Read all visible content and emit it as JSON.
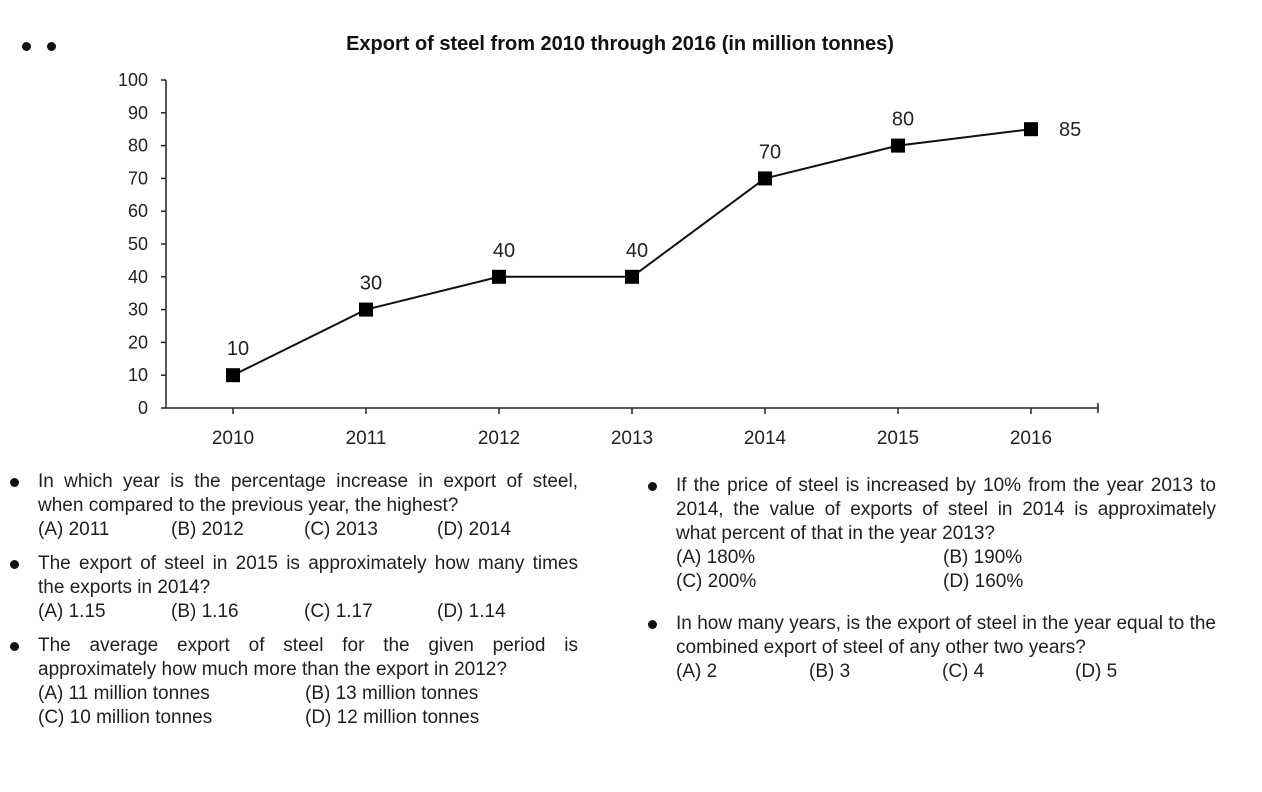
{
  "chart_data": {
    "type": "line",
    "title": "Export of steel from 2010 through 2016 (in million tonnes)",
    "xlabel": "",
    "ylabel": "",
    "x": [
      "2010",
      "2011",
      "2012",
      "2013",
      "2014",
      "2015",
      "2016"
    ],
    "values": [
      10,
      30,
      40,
      40,
      70,
      80,
      85
    ],
    "data_labels": [
      "10",
      "30",
      "40",
      "40",
      "70",
      "80",
      "85"
    ],
    "ylim": [
      0,
      100
    ],
    "yticks": [
      "0",
      "10",
      "20",
      "30",
      "40",
      "50",
      "60",
      "70",
      "80",
      "90",
      "100"
    ],
    "grid": false,
    "marker": "square",
    "line_color": "#111111"
  },
  "questions_left": [
    {
      "text": "In which year is the percentage increase in export of steel, when compared to the previous year, the highest?",
      "layout": "four",
      "options": [
        "(A) 2011",
        "(B) 2012",
        "(C) 2013",
        "(D) 2014"
      ]
    },
    {
      "text": "The export of steel in 2015 is approximately how many times the exports in 2014?",
      "layout": "four",
      "options": [
        "(A) 1.15",
        "(B) 1.16",
        "(C) 1.17",
        "(D) 1.14"
      ]
    },
    {
      "text": "The average export of steel for the given period is approximately how much more than the export in 2012?",
      "layout": "two",
      "options": [
        "(A) 11 million tonnes",
        "(B) 13 million tonnes",
        "(C) 10 million tonnes",
        "(D) 12 million tonnes"
      ]
    }
  ],
  "questions_right": [
    {
      "text": "If the price of steel is increased by 10% from the year 2013 to 2014, the value of exports of steel in 2014 is approximately what percent of that in the year 2013?",
      "layout": "two",
      "options": [
        "(A) 180%",
        "(B) 190%",
        "(C) 200%",
        "(D) 160%"
      ]
    },
    {
      "text": "In how many years, is the export of steel in the year equal to the combined export of steel of any other two years?",
      "layout": "four",
      "options": [
        "(A) 2",
        "(B) 3",
        "(C) 4",
        "(D) 5"
      ]
    }
  ]
}
